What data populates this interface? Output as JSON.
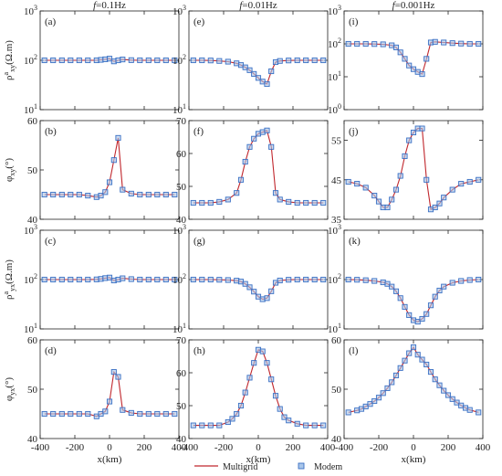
{
  "columns": [
    "f=0.1Hz",
    "f=0.01Hz",
    "f=0.001Hz"
  ],
  "column_parts": [
    {
      "italic": "f",
      "rest": "=0.1Hz"
    },
    {
      "italic": "f",
      "rest": "=0.01Hz"
    },
    {
      "italic": "f",
      "rest": "=0.001Hz"
    }
  ],
  "row_labels": [
    "ρa_xy(Ω.m)",
    "φxy(°)",
    "ρa_yx(Ω.m)",
    "φyx(°)"
  ],
  "row_label_parts": [
    {
      "main": "ρ",
      "sup": "a",
      "sub": "xy",
      "unit": "(Ω.m)"
    },
    {
      "main": "φ",
      "sup": "",
      "sub": "xy",
      "unit": "(°)"
    },
    {
      "main": "ρ",
      "sup": "a",
      "sub": "yx",
      "unit": "(Ω.m)"
    },
    {
      "main": "φ",
      "sup": "",
      "sub": "yx",
      "unit": "(°)"
    }
  ],
  "x_label": "x(km)",
  "x_ticks": [
    "-400",
    "-200",
    "0",
    "200",
    "400"
  ],
  "legend": {
    "line": "Multigrid",
    "marker": "Modem"
  },
  "colors": {
    "line": "#c0272d",
    "marker": "#3a6fc4",
    "marker_fill": "#a9c6ea"
  },
  "chart_data": [
    {
      "type": "line",
      "panel": "(a)",
      "xlim": [
        -400,
        400
      ],
      "ylog": true,
      "ylim": [
        10,
        1000
      ],
      "yticks": [
        "10^1",
        "10^2",
        "10^3"
      ],
      "x": [
        -375,
        -325,
        -275,
        -225,
        -175,
        -125,
        -75,
        -50,
        -25,
        0,
        25,
        50,
        75,
        125,
        175,
        225,
        275,
        325,
        375
      ],
      "series": [
        {
          "name": "Multigrid",
          "values": [
            100,
            100,
            100,
            100,
            100,
            100,
            100,
            102,
            105,
            108,
            95,
            100,
            104,
            101,
            100,
            100,
            100,
            100,
            100
          ]
        },
        {
          "name": "Modem",
          "values": [
            100,
            100,
            100,
            100,
            100,
            100,
            100,
            102,
            105,
            108,
            95,
            100,
            104,
            101,
            100,
            100,
            100,
            100,
            100
          ]
        }
      ]
    },
    {
      "type": "line",
      "panel": "(b)",
      "xlim": [
        -400,
        400
      ],
      "ylim": [
        40,
        60
      ],
      "yticks": [
        "40",
        "50",
        "60"
      ],
      "x": [
        -375,
        -325,
        -275,
        -225,
        -175,
        -125,
        -75,
        -50,
        -25,
        0,
        25,
        50,
        75,
        125,
        175,
        225,
        275,
        325,
        375
      ],
      "series": [
        {
          "name": "Multigrid",
          "values": [
            45,
            45,
            45,
            45,
            45,
            44.8,
            44.5,
            44.8,
            45.5,
            47.5,
            52,
            56.5,
            46,
            45.2,
            45,
            45,
            45,
            45,
            45
          ]
        },
        {
          "name": "Modem",
          "values": [
            45,
            45,
            45,
            45,
            45,
            44.8,
            44.5,
            44.8,
            45.5,
            47.5,
            52,
            56.5,
            46,
            45.2,
            45,
            45,
            45,
            45,
            45
          ]
        }
      ]
    },
    {
      "type": "line",
      "panel": "(c)",
      "xlim": [
        -400,
        400
      ],
      "ylog": true,
      "ylim": [
        10,
        1000
      ],
      "yticks": [
        "10^1",
        "10^2",
        "10^3"
      ],
      "x": [
        -375,
        -325,
        -275,
        -225,
        -175,
        -125,
        -75,
        -50,
        -25,
        0,
        25,
        50,
        75,
        125,
        175,
        225,
        275,
        325,
        375
      ],
      "series": [
        {
          "name": "Multigrid",
          "values": [
            100,
            100,
            100,
            100,
            100,
            100,
            101,
            103,
            107,
            110,
            96,
            100,
            106,
            102,
            100,
            100,
            100,
            100,
            100
          ]
        },
        {
          "name": "Modem",
          "values": [
            100,
            100,
            100,
            100,
            100,
            100,
            101,
            103,
            107,
            110,
            96,
            100,
            106,
            102,
            100,
            100,
            100,
            100,
            100
          ]
        }
      ]
    },
    {
      "type": "line",
      "panel": "(d)",
      "xlim": [
        -400,
        400
      ],
      "ylim": [
        40,
        60
      ],
      "yticks": [
        "40",
        "50",
        "60"
      ],
      "x": [
        -375,
        -325,
        -275,
        -225,
        -175,
        -125,
        -75,
        -50,
        -25,
        0,
        25,
        50,
        75,
        125,
        175,
        225,
        275,
        325,
        375
      ],
      "series": [
        {
          "name": "Multigrid",
          "values": [
            45,
            45,
            45,
            45,
            45,
            45,
            44.5,
            45,
            45.5,
            47.5,
            53.5,
            52.5,
            45.8,
            45.2,
            45,
            45,
            45,
            45,
            45
          ]
        },
        {
          "name": "Modem",
          "values": [
            45,
            45,
            45,
            45,
            45,
            45,
            44.5,
            45,
            45.5,
            47.5,
            53.5,
            52.5,
            45.8,
            45.2,
            45,
            45,
            45,
            45,
            45
          ]
        }
      ]
    },
    {
      "type": "line",
      "panel": "(e)",
      "xlim": [
        -400,
        400
      ],
      "ylog": true,
      "ylim": [
        10,
        1000
      ],
      "yticks": [
        "10^1",
        "10^2",
        "10^3"
      ],
      "x": [
        -375,
        -325,
        -275,
        -225,
        -175,
        -125,
        -100,
        -75,
        -50,
        -25,
        0,
        25,
        50,
        75,
        100,
        125,
        175,
        225,
        275,
        325,
        375
      ],
      "series": [
        {
          "name": "Multigrid",
          "values": [
            100,
            100,
            99,
            97,
            94,
            87,
            80,
            72,
            63,
            53,
            44,
            37,
            33,
            60,
            92,
            97,
            99,
            100,
            100,
            100,
            100
          ]
        },
        {
          "name": "Modem",
          "values": [
            100,
            100,
            99,
            97,
            94,
            87,
            80,
            72,
            63,
            53,
            44,
            37,
            33,
            60,
            92,
            97,
            99,
            100,
            100,
            100,
            100
          ]
        }
      ]
    },
    {
      "type": "line",
      "panel": "(f)",
      "xlim": [
        -400,
        400
      ],
      "ylim": [
        40,
        70
      ],
      "yticks": [
        "40",
        "50",
        "60",
        "70"
      ],
      "x": [
        -375,
        -325,
        -275,
        -225,
        -175,
        -125,
        -100,
        -75,
        -50,
        -25,
        0,
        25,
        50,
        75,
        100,
        125,
        175,
        225,
        275,
        325,
        375
      ],
      "series": [
        {
          "name": "Multigrid",
          "values": [
            45,
            45,
            45,
            45.3,
            46,
            48,
            52,
            57.5,
            62,
            64.5,
            66,
            66.5,
            67,
            62,
            48,
            46,
            45.3,
            45,
            45,
            45,
            45
          ]
        },
        {
          "name": "Modem",
          "values": [
            45,
            45,
            45,
            45.3,
            46,
            48,
            52,
            57.5,
            62,
            64.5,
            66,
            66.5,
            67,
            62,
            48,
            46,
            45.3,
            45,
            45,
            45,
            45
          ]
        }
      ]
    },
    {
      "type": "line",
      "panel": "(g)",
      "xlim": [
        -400,
        400
      ],
      "ylog": true,
      "ylim": [
        10,
        1000
      ],
      "yticks": [
        "10^1",
        "10^2",
        "10^3"
      ],
      "x": [
        -375,
        -325,
        -275,
        -225,
        -175,
        -125,
        -100,
        -75,
        -50,
        -25,
        0,
        25,
        50,
        75,
        100,
        125,
        175,
        225,
        275,
        325,
        375
      ],
      "series": [
        {
          "name": "Multigrid",
          "values": [
            100,
            100,
            100,
            99,
            98,
            95,
            91,
            82,
            70,
            57,
            45,
            40,
            42,
            58,
            86,
            96,
            99,
            100,
            100,
            100,
            100
          ]
        },
        {
          "name": "Modem",
          "values": [
            100,
            100,
            100,
            99,
            98,
            95,
            91,
            82,
            70,
            57,
            45,
            40,
            42,
            58,
            86,
            96,
            99,
            100,
            100,
            100,
            100
          ]
        }
      ]
    },
    {
      "type": "line",
      "panel": "(h)",
      "xlim": [
        -400,
        400
      ],
      "ylim": [
        40,
        70
      ],
      "yticks": [
        "40",
        "50",
        "60",
        "70"
      ],
      "x": [
        -375,
        -325,
        -275,
        -225,
        -175,
        -150,
        -125,
        -100,
        -75,
        -50,
        -25,
        0,
        25,
        50,
        75,
        100,
        125,
        150,
        175,
        225,
        275,
        325,
        375
      ],
      "series": [
        {
          "name": "Multigrid",
          "values": [
            44,
            44,
            44,
            44,
            45,
            46,
            47.5,
            50,
            54,
            58.5,
            63,
            67,
            66.5,
            63,
            58,
            53,
            49,
            46.5,
            45.5,
            44.5,
            44,
            44,
            44
          ]
        },
        {
          "name": "Modem",
          "values": [
            44,
            44,
            44,
            44,
            45,
            46,
            47.5,
            50,
            54,
            58.5,
            63,
            67,
            66.5,
            63,
            58,
            53,
            49,
            46.5,
            45.5,
            44.5,
            44,
            44,
            44
          ]
        }
      ]
    },
    {
      "type": "line",
      "panel": "(i)",
      "xlim": [
        -400,
        400
      ],
      "ylog": true,
      "ylim": [
        1,
        1000
      ],
      "yticks": [
        "10^0",
        "10^1",
        "10^2",
        "10^3"
      ],
      "x": [
        -375,
        -325,
        -275,
        -225,
        -175,
        -125,
        -100,
        -75,
        -50,
        -25,
        0,
        25,
        50,
        75,
        100,
        125,
        175,
        225,
        275,
        325,
        375
      ],
      "series": [
        {
          "name": "Multigrid",
          "values": [
            100,
            100,
            100,
            99,
            97,
            90,
            78,
            55,
            35,
            22,
            17,
            14,
            12,
            35,
            110,
            115,
            110,
            105,
            102,
            100,
            100
          ]
        },
        {
          "name": "Modem",
          "values": [
            100,
            100,
            100,
            99,
            97,
            90,
            78,
            55,
            35,
            22,
            17,
            14,
            12,
            35,
            110,
            115,
            110,
            105,
            102,
            100,
            100
          ]
        }
      ]
    },
    {
      "type": "line",
      "panel": "(j)",
      "xlim": [
        -400,
        400
      ],
      "ylim": [
        35,
        60
      ],
      "yticks": [
        "35",
        "45",
        "55"
      ],
      "x": [
        -375,
        -325,
        -275,
        -225,
        -200,
        -175,
        -150,
        -125,
        -100,
        -75,
        -50,
        -25,
        0,
        25,
        50,
        75,
        100,
        125,
        150,
        175,
        225,
        275,
        325,
        375
      ],
      "series": [
        {
          "name": "Multigrid",
          "values": [
            44.5,
            44,
            43,
            41,
            39.5,
            38,
            38,
            40,
            42.5,
            46,
            51,
            55,
            57,
            58,
            58,
            45,
            37.5,
            38,
            39,
            40.5,
            42.5,
            44,
            44.5,
            45
          ]
        },
        {
          "name": "Modem",
          "values": [
            44.5,
            44,
            43,
            41,
            39.5,
            38,
            38,
            40,
            42.5,
            46,
            51,
            55,
            57,
            58,
            58,
            45,
            37.5,
            38,
            39,
            40.5,
            42.5,
            44,
            44.5,
            45
          ]
        }
      ]
    },
    {
      "type": "line",
      "panel": "(k)",
      "xlim": [
        -400,
        400
      ],
      "ylog": true,
      "ylim": [
        10,
        1000
      ],
      "yticks": [
        "10^1",
        "10^2",
        "10^3"
      ],
      "x": [
        -375,
        -325,
        -275,
        -225,
        -175,
        -150,
        -125,
        -100,
        -75,
        -50,
        -25,
        0,
        25,
        50,
        75,
        100,
        125,
        150,
        175,
        225,
        275,
        325,
        375
      ],
      "series": [
        {
          "name": "Multigrid",
          "values": [
            100,
            99,
            97,
            94,
            88,
            82,
            72,
            58,
            42,
            28,
            19,
            15,
            14,
            16,
            20,
            30,
            45,
            60,
            72,
            86,
            94,
            98,
            100
          ]
        },
        {
          "name": "Modem",
          "values": [
            100,
            99,
            97,
            94,
            88,
            82,
            72,
            58,
            42,
            28,
            19,
            15,
            14,
            16,
            20,
            30,
            45,
            60,
            72,
            86,
            94,
            98,
            100
          ]
        }
      ]
    },
    {
      "type": "line",
      "panel": "(l)",
      "xlim": [
        -400,
        400
      ],
      "ylim": [
        40,
        60
      ],
      "yticks": [
        "40",
        "50",
        "60"
      ],
      "x": [
        -375,
        -325,
        -300,
        -275,
        -250,
        -225,
        -200,
        -175,
        -150,
        -125,
        -100,
        -75,
        -50,
        -25,
        0,
        25,
        50,
        75,
        100,
        125,
        150,
        175,
        200,
        225,
        250,
        275,
        300,
        325,
        375
      ],
      "series": [
        {
          "name": "Multigrid",
          "values": [
            45.3,
            45.7,
            46,
            46.5,
            47,
            47.6,
            48.3,
            49.2,
            50.2,
            51.4,
            52.8,
            54.3,
            55.8,
            57.3,
            58.5,
            57,
            56,
            55,
            53.5,
            52,
            50.8,
            49.7,
            48.8,
            48,
            47.3,
            46.7,
            46.2,
            45.8,
            45.3
          ]
        },
        {
          "name": "Modem",
          "values": [
            45.3,
            45.7,
            46,
            46.5,
            47,
            47.6,
            48.3,
            49.2,
            50.2,
            51.4,
            52.8,
            54.3,
            55.8,
            57.3,
            58.5,
            57,
            56,
            55,
            53.5,
            52,
            50.8,
            49.7,
            48.8,
            48,
            47.3,
            46.7,
            46.2,
            45.8,
            45.3
          ]
        }
      ]
    }
  ]
}
